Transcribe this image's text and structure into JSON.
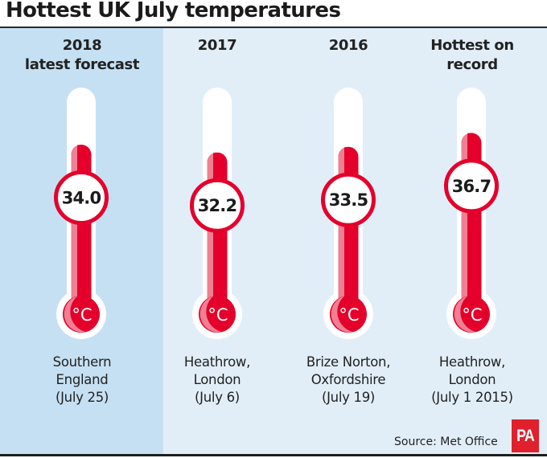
{
  "title": "Hottest UK July temperatures",
  "source": "Source: Met Office",
  "logo_text": "PA",
  "unit_label": "°C",
  "colors": {
    "red": "#e4002b",
    "pink": "#ef7f93",
    "highlight_panel": "#c6e0f3",
    "panel": "#e1eef8",
    "logo": "#e0202d"
  },
  "chart_data": {
    "type": "bar",
    "title": "Hottest UK July temperatures",
    "ylabel": "°C",
    "categories": [
      "2018 latest forecast",
      "2017",
      "2016",
      "Hottest on record"
    ],
    "values": [
      34.0,
      32.2,
      33.5,
      36.7
    ],
    "value_labels": [
      "34.0",
      "32.2",
      "33.5",
      "36.7"
    ],
    "columns": [
      {
        "heading": [
          "2018",
          "latest forecast"
        ],
        "value": 34.0,
        "label": "34.0",
        "location": [
          "Southern",
          "England",
          "(July 25)"
        ],
        "highlighted": true
      },
      {
        "heading": [
          "2017"
        ],
        "value": 32.2,
        "label": "32.2",
        "location": [
          "Heathrow,",
          "London",
          "(July 6)"
        ],
        "highlighted": false
      },
      {
        "heading": [
          "2016"
        ],
        "value": 33.5,
        "label": "33.5",
        "location": [
          "Brize Norton,",
          "Oxfordshire",
          "(July 19)"
        ],
        "highlighted": false
      },
      {
        "heading": [
          "Hottest on",
          "record"
        ],
        "value": 36.7,
        "label": "36.7",
        "location": [
          "Heathrow,",
          "London",
          "(July 1 2015)"
        ],
        "highlighted": false
      }
    ]
  }
}
